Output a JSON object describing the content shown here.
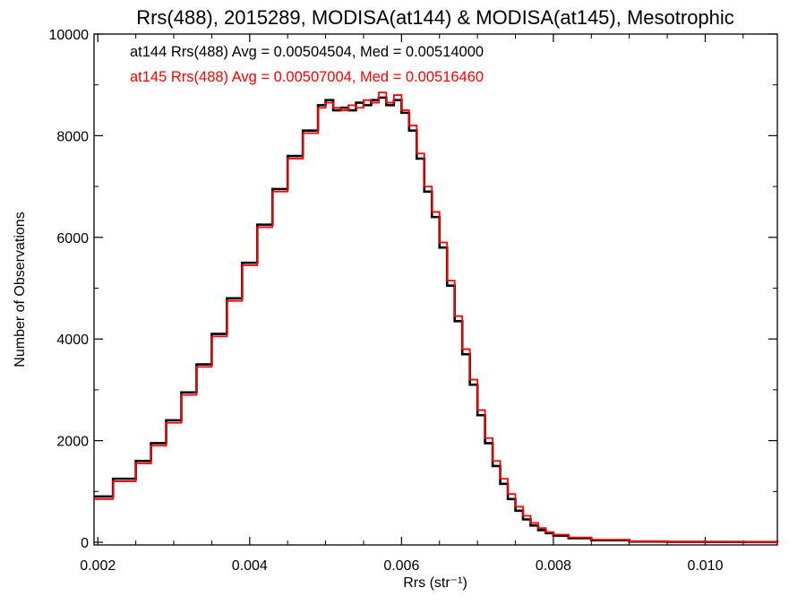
{
  "chart_data": {
    "type": "line",
    "title": "Rrs(488), 2015289, MODISA(at144) & MODISA(at145), Mesotrophic",
    "xlabel": "Rrs (str⁻¹)",
    "ylabel": "Number of Observations",
    "xlim": [
      0.00195,
      0.01095
    ],
    "ylim": [
      0,
      10000
    ],
    "xticks": [
      "0.002",
      "0.004",
      "0.006",
      "0.008",
      "0.010"
    ],
    "xtick_values": [
      0.002,
      0.004,
      0.006,
      0.008,
      0.01
    ],
    "yticks": [
      "0",
      "2000",
      "4000",
      "6000",
      "8000",
      "10000"
    ],
    "ytick_values": [
      0,
      2000,
      4000,
      6000,
      8000,
      10000
    ],
    "grid": false,
    "annotations": [
      {
        "text": "at144 Rrs(488) Avg = 0.00504504, Med = 0.00514000",
        "color": "#000000"
      },
      {
        "text": "at145 Rrs(488) Avg = 0.00507004, Med = 0.00516460",
        "color": "#ff0000"
      }
    ],
    "series": [
      {
        "color": "#000000",
        "x": [
          0.00195,
          0.0022,
          0.0025,
          0.0027,
          0.0029,
          0.0031,
          0.0033,
          0.0035,
          0.0037,
          0.0039,
          0.0041,
          0.0043,
          0.0045,
          0.0047,
          0.0049,
          0.005,
          0.0051,
          0.0052,
          0.0053,
          0.0054,
          0.0055,
          0.0056,
          0.0057,
          0.0058,
          0.0059,
          0.006,
          0.0061,
          0.0062,
          0.0063,
          0.0064,
          0.0065,
          0.0066,
          0.0067,
          0.0068,
          0.0069,
          0.007,
          0.0071,
          0.0072,
          0.0073,
          0.0074,
          0.0075,
          0.0076,
          0.0077,
          0.0078,
          0.0079,
          0.008,
          0.0082,
          0.0085,
          0.009,
          0.0095,
          0.01,
          0.0105,
          0.01095
        ],
        "values": [
          900,
          1250,
          1600,
          1950,
          2400,
          2950,
          3500,
          4100,
          4800,
          5500,
          6250,
          6950,
          7600,
          8100,
          8600,
          8700,
          8500,
          8550,
          8500,
          8650,
          8600,
          8700,
          8750,
          8600,
          8700,
          8450,
          8100,
          7550,
          6900,
          6400,
          5800,
          5050,
          4350,
          3700,
          3100,
          2500,
          1950,
          1500,
          1150,
          850,
          620,
          450,
          330,
          240,
          180,
          130,
          80,
          40,
          15,
          8,
          5,
          3,
          2
        ]
      },
      {
        "color": "#ff0000",
        "x": [
          0.00195,
          0.0022,
          0.0025,
          0.0027,
          0.0029,
          0.0031,
          0.0033,
          0.0035,
          0.0037,
          0.0039,
          0.0041,
          0.0043,
          0.0045,
          0.0047,
          0.0049,
          0.005,
          0.0051,
          0.0052,
          0.0053,
          0.0054,
          0.0055,
          0.0056,
          0.0057,
          0.0058,
          0.0059,
          0.006,
          0.0061,
          0.0062,
          0.0063,
          0.0064,
          0.0065,
          0.0066,
          0.0067,
          0.0068,
          0.0069,
          0.007,
          0.0071,
          0.0072,
          0.0073,
          0.0074,
          0.0075,
          0.0076,
          0.0077,
          0.0078,
          0.0079,
          0.008,
          0.0082,
          0.0085,
          0.009,
          0.0095,
          0.01,
          0.0105,
          0.01095
        ],
        "values": [
          850,
          1200,
          1550,
          1900,
          2350,
          2900,
          3450,
          4050,
          4750,
          5450,
          6200,
          6900,
          7550,
          8050,
          8550,
          8650,
          8550,
          8500,
          8600,
          8550,
          8700,
          8650,
          8850,
          8650,
          8800,
          8500,
          8200,
          7650,
          7000,
          6500,
          5900,
          5150,
          4450,
          3800,
          3200,
          2600,
          2050,
          1600,
          1250,
          950,
          700,
          520,
          380,
          280,
          200,
          150,
          95,
          50,
          20,
          10,
          6,
          4,
          3
        ]
      }
    ]
  }
}
